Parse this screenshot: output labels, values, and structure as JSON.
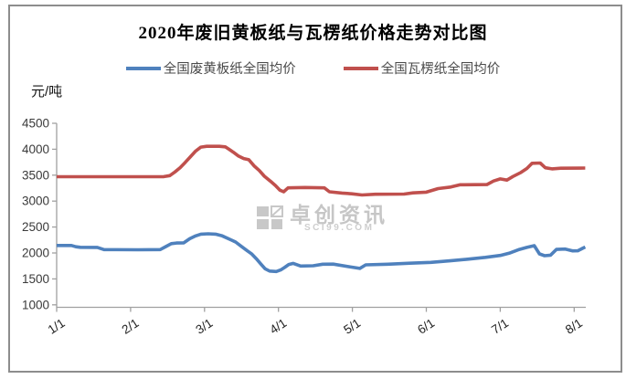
{
  "window": {
    "background": "#ffffff",
    "border_color": "#8d8d8d"
  },
  "chart_data": {
    "type": "line",
    "title": "2020年废旧黄板纸与瓦楞纸价格走势对比图",
    "unit_label": "元/吨",
    "x_tick_labels": [
      "1/1",
      "2/1",
      "3/1",
      "4/1",
      "5/1",
      "6/1",
      "7/1",
      "8/1"
    ],
    "y_ticks": [
      1000,
      1500,
      2000,
      2500,
      3000,
      3500,
      4000,
      4500
    ],
    "ylim": [
      1000,
      4500
    ],
    "xlim_months": [
      0,
      7.15
    ],
    "grid": "off",
    "legend_position": "top",
    "axis_color": "#a0a0a0",
    "label_color": "#3a3a3a",
    "x_axis_note": "series point x values are months elapsed since 1/1 (0 = 1/1, 7 = 8/1)",
    "series": [
      {
        "name": "全国废黄板纸全国均价",
        "color": "#4f81bd",
        "points": [
          [
            0,
            2145
          ],
          [
            0.2,
            2145
          ],
          [
            0.26,
            2120
          ],
          [
            0.32,
            2110
          ],
          [
            0.55,
            2108
          ],
          [
            0.64,
            2065
          ],
          [
            1.1,
            2062
          ],
          [
            1.4,
            2065
          ],
          [
            1.48,
            2125
          ],
          [
            1.55,
            2180
          ],
          [
            1.62,
            2192
          ],
          [
            1.72,
            2195
          ],
          [
            1.8,
            2275
          ],
          [
            1.88,
            2330
          ],
          [
            1.95,
            2362
          ],
          [
            2.05,
            2370
          ],
          [
            2.15,
            2362
          ],
          [
            2.24,
            2330
          ],
          [
            2.33,
            2272
          ],
          [
            2.42,
            2212
          ],
          [
            2.5,
            2125
          ],
          [
            2.58,
            2040
          ],
          [
            2.64,
            1978
          ],
          [
            2.7,
            1890
          ],
          [
            2.76,
            1790
          ],
          [
            2.82,
            1695
          ],
          [
            2.88,
            1652
          ],
          [
            2.97,
            1642
          ],
          [
            3.03,
            1672
          ],
          [
            3.08,
            1718
          ],
          [
            3.14,
            1778
          ],
          [
            3.2,
            1800
          ],
          [
            3.3,
            1748
          ],
          [
            3.47,
            1753
          ],
          [
            3.6,
            1783
          ],
          [
            3.74,
            1786
          ],
          [
            3.96,
            1734
          ],
          [
            4.1,
            1702
          ],
          [
            4.18,
            1772
          ],
          [
            4.48,
            1783
          ],
          [
            4.78,
            1802
          ],
          [
            5.06,
            1818
          ],
          [
            5.32,
            1848
          ],
          [
            5.56,
            1880
          ],
          [
            5.8,
            1916
          ],
          [
            6.0,
            1952
          ],
          [
            6.12,
            1995
          ],
          [
            6.26,
            2068
          ],
          [
            6.36,
            2108
          ],
          [
            6.46,
            2140
          ],
          [
            6.53,
            1982
          ],
          [
            6.6,
            1948
          ],
          [
            6.68,
            1958
          ],
          [
            6.76,
            2068
          ],
          [
            6.88,
            2076
          ],
          [
            6.98,
            2040
          ],
          [
            7.05,
            2042
          ],
          [
            7.12,
            2095
          ],
          [
            7.15,
            2115
          ]
        ]
      },
      {
        "name": "全国瓦楞纸全国均价",
        "color": "#c0504d",
        "points": [
          [
            0,
            3470
          ],
          [
            1.0,
            3470
          ],
          [
            1.45,
            3472
          ],
          [
            1.53,
            3492
          ],
          [
            1.6,
            3562
          ],
          [
            1.67,
            3645
          ],
          [
            1.74,
            3748
          ],
          [
            1.81,
            3855
          ],
          [
            1.88,
            3965
          ],
          [
            1.95,
            4040
          ],
          [
            2.03,
            4057
          ],
          [
            2.2,
            4057
          ],
          [
            2.28,
            4046
          ],
          [
            2.33,
            4000
          ],
          [
            2.39,
            3942
          ],
          [
            2.46,
            3868
          ],
          [
            2.53,
            3820
          ],
          [
            2.6,
            3798
          ],
          [
            2.67,
            3680
          ],
          [
            2.74,
            3590
          ],
          [
            2.81,
            3478
          ],
          [
            2.89,
            3385
          ],
          [
            2.96,
            3300
          ],
          [
            3.02,
            3212
          ],
          [
            3.07,
            3180
          ],
          [
            3.13,
            3255
          ],
          [
            3.36,
            3262
          ],
          [
            3.62,
            3255
          ],
          [
            3.69,
            3180
          ],
          [
            3.86,
            3155
          ],
          [
            3.99,
            3140
          ],
          [
            4.13,
            3118
          ],
          [
            4.31,
            3132
          ],
          [
            4.7,
            3136
          ],
          [
            4.82,
            3158
          ],
          [
            5.0,
            3172
          ],
          [
            5.16,
            3242
          ],
          [
            5.33,
            3272
          ],
          [
            5.46,
            3316
          ],
          [
            5.82,
            3318
          ],
          [
            5.91,
            3388
          ],
          [
            6.0,
            3428
          ],
          [
            6.09,
            3405
          ],
          [
            6.17,
            3474
          ],
          [
            6.28,
            3552
          ],
          [
            6.36,
            3628
          ],
          [
            6.43,
            3728
          ],
          [
            6.54,
            3734
          ],
          [
            6.61,
            3642
          ],
          [
            6.7,
            3622
          ],
          [
            6.82,
            3634
          ],
          [
            7.15,
            3638
          ]
        ]
      }
    ],
    "watermark": {
      "text": "卓创资讯",
      "subtext": "SCI99.COM",
      "color": "#c6c6c6"
    }
  }
}
